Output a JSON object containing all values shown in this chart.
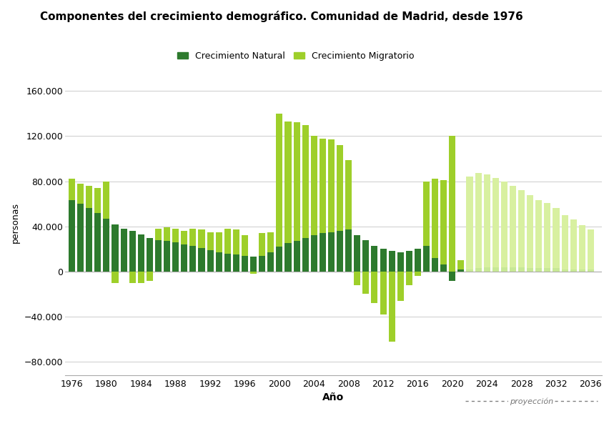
{
  "title": "Componentes del crecimiento demográfico. Comunidad de Madrid, desde 1976",
  "xlabel": "Año",
  "ylabel": "personas",
  "legend_natural": "Crecimiento Natural",
  "legend_migratorio": "Crecimiento Migratorio",
  "color_natural_hist": "#2d7a2d",
  "color_migratorio_hist": "#9ecf2a",
  "color_natural_proj": "#c8e896",
  "color_migratorio_proj": "#d8f0a0",
  "yticks": [
    -80000,
    -40000,
    0,
    40000,
    80000,
    120000,
    160000
  ],
  "ylim": [
    -92000,
    178000
  ],
  "xlim": [
    1975.2,
    2037.3
  ],
  "projection_start_year": 2022,
  "bar_width": 0.75,
  "years": [
    1976,
    1977,
    1978,
    1979,
    1980,
    1981,
    1982,
    1983,
    1984,
    1985,
    1986,
    1987,
    1988,
    1989,
    1990,
    1991,
    1992,
    1993,
    1994,
    1995,
    1996,
    1997,
    1998,
    1999,
    2000,
    2001,
    2002,
    2003,
    2004,
    2005,
    2006,
    2007,
    2008,
    2009,
    2010,
    2011,
    2012,
    2013,
    2014,
    2015,
    2016,
    2017,
    2018,
    2019,
    2020,
    2021,
    2022,
    2023,
    2024,
    2025,
    2026,
    2027,
    2028,
    2029,
    2030,
    2031,
    2032,
    2033,
    2034,
    2035,
    2036
  ],
  "natural": [
    63000,
    60000,
    56000,
    52000,
    47000,
    42000,
    38000,
    36000,
    33000,
    30000,
    28000,
    27000,
    26000,
    24000,
    23000,
    21000,
    19000,
    17000,
    16000,
    15000,
    14000,
    13000,
    14000,
    17000,
    22000,
    25000,
    27000,
    30000,
    32000,
    34000,
    35000,
    36000,
    37000,
    32000,
    28000,
    23000,
    20000,
    18000,
    17000,
    18000,
    20000,
    23000,
    12000,
    6000,
    -8000,
    2000,
    2000,
    3000,
    4000,
    4000,
    4000,
    4000,
    4000,
    3000,
    3000,
    3000,
    3000,
    2000,
    2000,
    2000,
    2000
  ],
  "migratorio": [
    19000,
    18000,
    20000,
    22000,
    33000,
    -10000,
    0,
    -10000,
    -10000,
    -8000,
    10000,
    12000,
    12000,
    12000,
    15000,
    16000,
    16000,
    18000,
    22000,
    22000,
    18000,
    -2000,
    20000,
    18000,
    118000,
    108000,
    105000,
    100000,
    88000,
    84000,
    82000,
    76000,
    62000,
    -12000,
    -20000,
    -28000,
    -38000,
    -62000,
    -26000,
    -12000,
    -4000,
    57000,
    70000,
    75000,
    120000,
    8000,
    82000,
    84000,
    82000,
    79000,
    76000,
    72000,
    68000,
    65000,
    60000,
    58000,
    53000,
    48000,
    44000,
    39000,
    35000
  ]
}
